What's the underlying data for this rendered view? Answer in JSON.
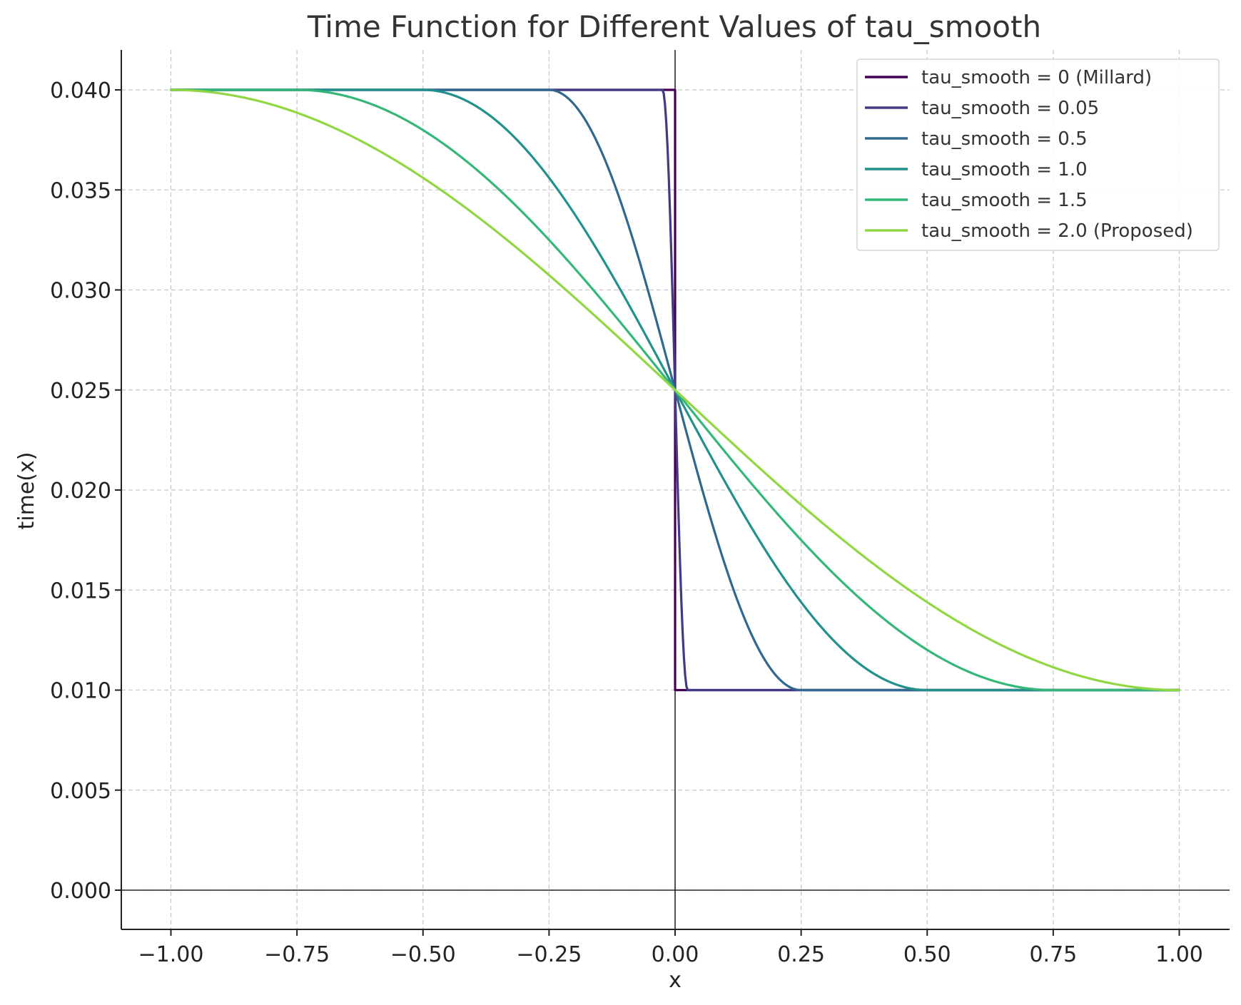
{
  "chart_data": {
    "type": "line",
    "title": "Time Function for Different Values of tau_smooth",
    "xlabel": "x",
    "ylabel": "time(x)",
    "xlim": [
      -1.1,
      1.1
    ],
    "ylim": [
      -0.002,
      0.042
    ],
    "xticks": [
      -1.0,
      -0.75,
      -0.5,
      -0.25,
      0.0,
      0.25,
      0.5,
      0.75,
      1.0
    ],
    "xtick_labels": [
      "−1.00",
      "−0.75",
      "−0.50",
      "−0.25",
      "0.00",
      "0.25",
      "0.50",
      "0.75",
      "1.00"
    ],
    "yticks": [
      0.0,
      0.005,
      0.01,
      0.015,
      0.02,
      0.025,
      0.03,
      0.035,
      0.04
    ],
    "ytick_labels": [
      "0.000",
      "0.005",
      "0.010",
      "0.015",
      "0.020",
      "0.025",
      "0.030",
      "0.035",
      "0.040"
    ],
    "grid": true,
    "legend_position": "top-right",
    "x_range": [
      -1.0,
      1.0
    ],
    "y_high": 0.04,
    "y_low": 0.01,
    "series": [
      {
        "name": "tau_smooth = 0 (Millard)",
        "tau": 0.0,
        "color": "#440154"
      },
      {
        "name": "tau_smooth = 0.05",
        "tau": 0.05,
        "color": "#443983"
      },
      {
        "name": "tau_smooth = 0.5",
        "tau": 0.5,
        "color": "#31688e"
      },
      {
        "name": "tau_smooth = 1.0",
        "tau": 1.0,
        "color": "#21918c"
      },
      {
        "name": "tau_smooth = 1.5",
        "tau": 1.5,
        "color": "#35b779"
      },
      {
        "name": "tau_smooth = 2.0 (Proposed)",
        "tau": 2.0,
        "color": "#90d743"
      }
    ]
  }
}
